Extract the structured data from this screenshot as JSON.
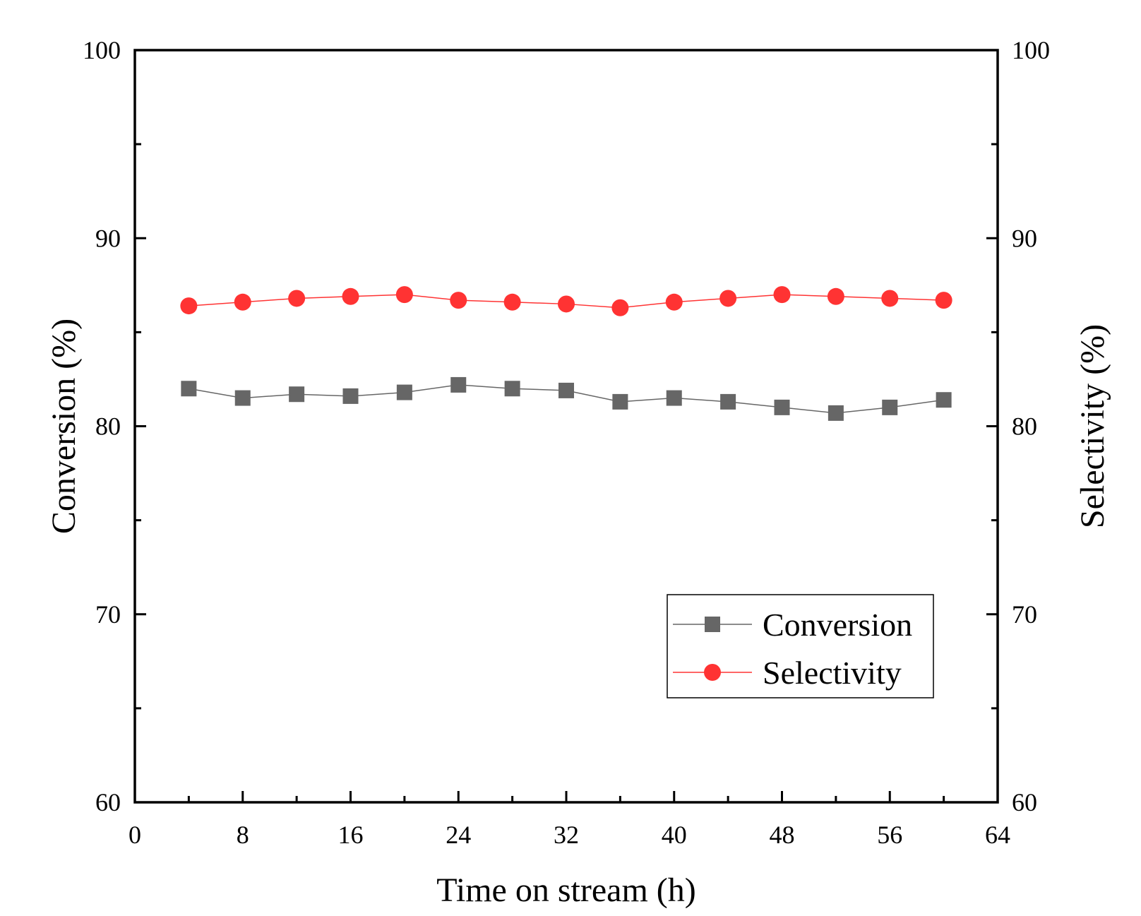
{
  "chart_data": {
    "type": "line",
    "title": "",
    "xlabel": "Time on stream (h)",
    "ylabel_left": "Conversion (%)",
    "ylabel_right": "Selectivity (%)",
    "xlim": [
      0,
      64
    ],
    "ylim_left": [
      60,
      100
    ],
    "ylim_right": [
      60,
      100
    ],
    "x_ticks": [
      0,
      8,
      16,
      24,
      32,
      40,
      48,
      56,
      64
    ],
    "x_ticks_minor": [
      4,
      12,
      20,
      28,
      36,
      44,
      52,
      60
    ],
    "y_ticks": [
      60,
      70,
      80,
      90,
      100
    ],
    "y_ticks_minor": [
      65,
      75,
      85,
      95
    ],
    "x": [
      4,
      8,
      12,
      16,
      20,
      24,
      28,
      32,
      36,
      40,
      44,
      48,
      52,
      56,
      60
    ],
    "series": [
      {
        "name": "Conversion",
        "axis": "left",
        "color": "#666666",
        "marker": "square",
        "values": [
          82.0,
          81.5,
          81.7,
          81.6,
          81.8,
          82.2,
          82.0,
          81.9,
          81.3,
          81.5,
          81.3,
          81.0,
          80.7,
          81.0,
          81.4
        ]
      },
      {
        "name": "Selectivity",
        "axis": "right",
        "color": "#ff3333",
        "marker": "circle",
        "values": [
          86.4,
          86.6,
          86.8,
          86.9,
          87.0,
          86.7,
          86.6,
          86.5,
          86.3,
          86.6,
          86.8,
          87.0,
          86.9,
          86.8,
          86.7
        ]
      }
    ],
    "legend": {
      "position": "bottom-right",
      "entries": [
        "Conversion",
        "Selectivity"
      ]
    },
    "grid": false
  }
}
